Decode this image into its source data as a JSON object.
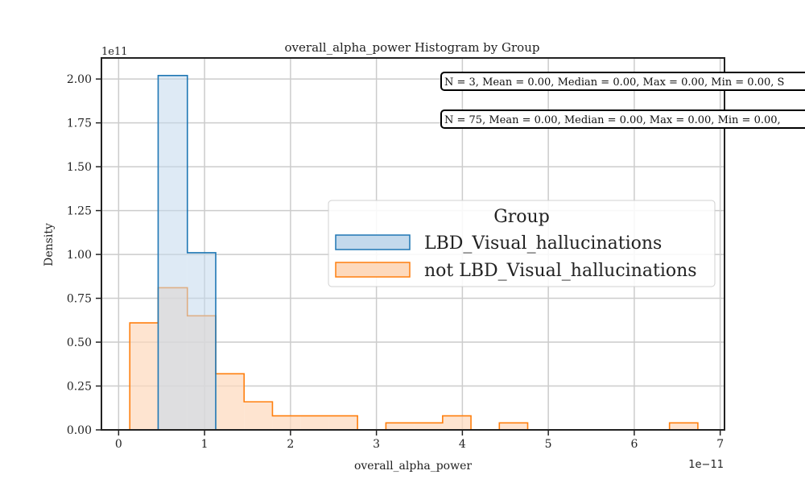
{
  "chart_data": {
    "type": "histogram",
    "title": "overall_alpha_power Histogram by Group",
    "xlabel": "overall_alpha_power",
    "ylabel": "Density",
    "x_offset_label": "1e−11",
    "y_offset_label": "1e11",
    "xlim": [
      -0.2,
      7.05
    ],
    "ylim": [
      0,
      2.12
    ],
    "x_unit_scale": "1e-11",
    "y_unit_scale": "1e11",
    "xticks": [
      {
        "value": 0,
        "label": "0"
      },
      {
        "value": 1,
        "label": "1"
      },
      {
        "value": 2,
        "label": "2"
      },
      {
        "value": 3,
        "label": "3"
      },
      {
        "value": 4,
        "label": "4"
      },
      {
        "value": 5,
        "label": "5"
      },
      {
        "value": 6,
        "label": "6"
      },
      {
        "value": 7,
        "label": "7"
      }
    ],
    "yticks": [
      {
        "value": 0,
        "label": "0.00"
      },
      {
        "value": 0.25,
        "label": "0.25"
      },
      {
        "value": 0.5,
        "label": "0.50"
      },
      {
        "value": 0.75,
        "label": "0.75"
      },
      {
        "value": 1.0,
        "label": "1.00"
      },
      {
        "value": 1.25,
        "label": "1.25"
      },
      {
        "value": 1.5,
        "label": "1.50"
      },
      {
        "value": 1.75,
        "label": "1.75"
      },
      {
        "value": 2.0,
        "label": "2.00"
      }
    ],
    "grid": true,
    "legend": {
      "title": "Group",
      "placement": "center-right"
    },
    "series": [
      {
        "name": "LBD_Visual_hallucinations",
        "color": "#1f77b4",
        "fill": "#c3d9ec",
        "bins": [
          {
            "x0": 0.46,
            "x1": 0.8,
            "density": 2.02
          },
          {
            "x0": 0.8,
            "x1": 1.13,
            "density": 1.01
          }
        ]
      },
      {
        "name": "not LBD_Visual_hallucinations",
        "color": "#ff7f0e",
        "fill": "#fdd9bc",
        "bins": [
          {
            "x0": 0.13,
            "x1": 0.46,
            "density": 0.61
          },
          {
            "x0": 0.46,
            "x1": 0.8,
            "density": 0.81
          },
          {
            "x0": 0.8,
            "x1": 1.13,
            "density": 0.65
          },
          {
            "x0": 1.13,
            "x1": 1.46,
            "density": 0.32
          },
          {
            "x0": 1.46,
            "x1": 1.79,
            "density": 0.16
          },
          {
            "x0": 1.79,
            "x1": 2.12,
            "density": 0.08
          },
          {
            "x0": 2.12,
            "x1": 2.45,
            "density": 0.08
          },
          {
            "x0": 2.45,
            "x1": 2.78,
            "density": 0.08
          },
          {
            "x0": 2.78,
            "x1": 3.11,
            "density": 0.0
          },
          {
            "x0": 3.11,
            "x1": 3.44,
            "density": 0.04
          },
          {
            "x0": 3.44,
            "x1": 3.77,
            "density": 0.04
          },
          {
            "x0": 3.77,
            "x1": 4.1,
            "density": 0.08
          },
          {
            "x0": 4.1,
            "x1": 4.43,
            "density": 0.0
          },
          {
            "x0": 4.43,
            "x1": 4.76,
            "density": 0.04
          },
          {
            "x0": 4.76,
            "x1": 5.09,
            "density": 0.0
          },
          {
            "x0": 5.09,
            "x1": 5.42,
            "density": 0.0
          },
          {
            "x0": 5.42,
            "x1": 5.75,
            "density": 0.0
          },
          {
            "x0": 5.75,
            "x1": 6.08,
            "density": 0.0
          },
          {
            "x0": 6.08,
            "x1": 6.41,
            "density": 0.0
          },
          {
            "x0": 6.41,
            "x1": 6.74,
            "density": 0.04
          }
        ]
      }
    ],
    "annotations": [
      {
        "text": "N = 3, Mean = 0.00, Median = 0.00, Max = 0.00, Min = 0.00, S"
      },
      {
        "text": "N = 75, Mean = 0.00, Median = 0.00, Max = 0.00, Min = 0.00,"
      }
    ]
  }
}
